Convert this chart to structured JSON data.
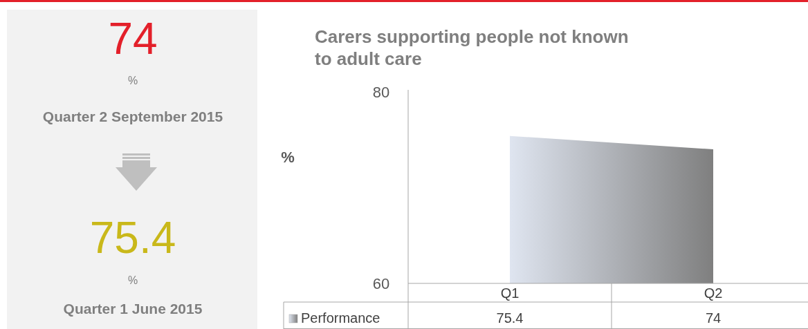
{
  "chart_data": [
    {
      "type": "other",
      "annotations": [
        "74",
        "%",
        "Quarter 2 September 2015",
        "75.4",
        "%",
        "Quarter 1 June 2015"
      ]
    },
    {
      "type": "area",
      "title": "Carers supporting people not known to adult care",
      "ylabel": "%",
      "categories": [
        "Q1",
        "Q2"
      ],
      "series": [
        {
          "name": "Performance",
          "color": "#7f7f7f",
          "values": [
            75.4,
            74
          ]
        }
      ],
      "ylim": [
        60,
        80
      ],
      "yticks": [
        60,
        80
      ],
      "data_labels": true,
      "legend": "bottom"
    }
  ]
}
